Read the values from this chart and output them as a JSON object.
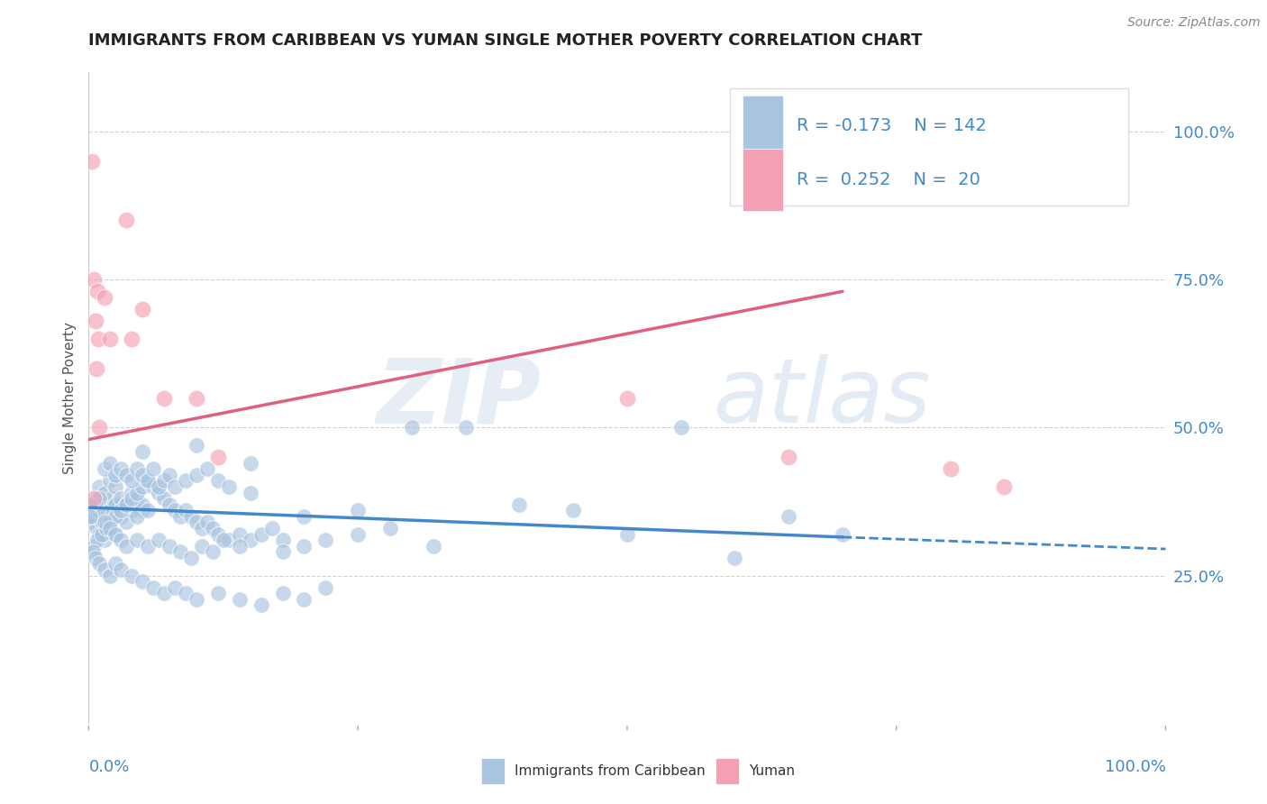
{
  "title": "IMMIGRANTS FROM CARIBBEAN VS YUMAN SINGLE MOTHER POVERTY CORRELATION CHART",
  "source": "Source: ZipAtlas.com",
  "ylabel": "Single Mother Poverty",
  "legend_labels": [
    "Immigrants from Caribbean",
    "Yuman"
  ],
  "blue_R": -0.173,
  "blue_N": 142,
  "pink_R": 0.252,
  "pink_N": 20,
  "blue_color": "#a8c4e0",
  "pink_color": "#f4a0b4",
  "blue_line_color": "#4488cc",
  "pink_line_color": "#e06080",
  "watermark_zip": "ZIP",
  "watermark_atlas": "atlas",
  "background_color": "#ffffff",
  "grid_color": "#cccccc",
  "axis_label_color": "#4488cc",
  "title_color": "#222222",
  "blue_scatter": [
    [
      0.3,
      34
    ],
    [
      0.5,
      35
    ],
    [
      0.7,
      33
    ],
    [
      1.0,
      36
    ],
    [
      1.2,
      34
    ],
    [
      1.5,
      35
    ],
    [
      1.8,
      37
    ],
    [
      2.0,
      36
    ],
    [
      2.2,
      38
    ],
    [
      2.5,
      37
    ],
    [
      0.8,
      38
    ],
    [
      1.0,
      40
    ],
    [
      1.5,
      39
    ],
    [
      2.0,
      41
    ],
    [
      2.5,
      40
    ],
    [
      3.0,
      38
    ],
    [
      3.5,
      37
    ],
    [
      4.0,
      39
    ],
    [
      4.5,
      38
    ],
    [
      5.0,
      36
    ],
    [
      1.0,
      32
    ],
    [
      1.5,
      31
    ],
    [
      2.0,
      33
    ],
    [
      2.5,
      32
    ],
    [
      3.0,
      35
    ],
    [
      3.5,
      34
    ],
    [
      4.0,
      36
    ],
    [
      4.5,
      35
    ],
    [
      5.0,
      37
    ],
    [
      5.5,
      36
    ],
    [
      0.5,
      30
    ],
    [
      0.8,
      31
    ],
    [
      1.2,
      32
    ],
    [
      1.6,
      33
    ],
    [
      2.0,
      34
    ],
    [
      2.5,
      35
    ],
    [
      3.0,
      36
    ],
    [
      3.5,
      37
    ],
    [
      4.0,
      38
    ],
    [
      4.5,
      39
    ],
    [
      5.0,
      40
    ],
    [
      5.5,
      41
    ],
    [
      6.0,
      40
    ],
    [
      6.5,
      39
    ],
    [
      7.0,
      38
    ],
    [
      7.5,
      37
    ],
    [
      8.0,
      36
    ],
    [
      8.5,
      35
    ],
    [
      9.0,
      36
    ],
    [
      9.5,
      35
    ],
    [
      10.0,
      34
    ],
    [
      10.5,
      33
    ],
    [
      11.0,
      34
    ],
    [
      11.5,
      33
    ],
    [
      12.0,
      32
    ],
    [
      13.0,
      31
    ],
    [
      14.0,
      32
    ],
    [
      15.0,
      31
    ],
    [
      16.0,
      32
    ],
    [
      17.0,
      33
    ],
    [
      1.5,
      43
    ],
    [
      2.0,
      44
    ],
    [
      2.5,
      42
    ],
    [
      3.0,
      43
    ],
    [
      3.5,
      42
    ],
    [
      4.0,
      41
    ],
    [
      4.5,
      43
    ],
    [
      5.0,
      42
    ],
    [
      5.5,
      41
    ],
    [
      6.0,
      43
    ],
    [
      6.5,
      40
    ],
    [
      7.0,
      41
    ],
    [
      7.5,
      42
    ],
    [
      8.0,
      40
    ],
    [
      9.0,
      41
    ],
    [
      10.0,
      42
    ],
    [
      11.0,
      43
    ],
    [
      12.0,
      41
    ],
    [
      13.0,
      40
    ],
    [
      15.0,
      39
    ],
    [
      0.4,
      29
    ],
    [
      0.6,
      28
    ],
    [
      1.0,
      27
    ],
    [
      1.5,
      26
    ],
    [
      2.0,
      25
    ],
    [
      2.5,
      27
    ],
    [
      3.0,
      26
    ],
    [
      4.0,
      25
    ],
    [
      5.0,
      24
    ],
    [
      6.0,
      23
    ],
    [
      7.0,
      22
    ],
    [
      8.0,
      23
    ],
    [
      9.0,
      22
    ],
    [
      10.0,
      21
    ],
    [
      12.0,
      22
    ],
    [
      14.0,
      21
    ],
    [
      16.0,
      20
    ],
    [
      18.0,
      22
    ],
    [
      20.0,
      21
    ],
    [
      22.0,
      23
    ],
    [
      0.2,
      36
    ],
    [
      0.4,
      35
    ],
    [
      0.6,
      37
    ],
    [
      0.8,
      36
    ],
    [
      1.0,
      38
    ],
    [
      1.5,
      34
    ],
    [
      2.0,
      33
    ],
    [
      2.5,
      32
    ],
    [
      3.0,
      31
    ],
    [
      3.5,
      30
    ],
    [
      4.5,
      31
    ],
    [
      5.5,
      30
    ],
    [
      6.5,
      31
    ],
    [
      7.5,
      30
    ],
    [
      8.5,
      29
    ],
    [
      9.5,
      28
    ],
    [
      10.5,
      30
    ],
    [
      11.5,
      29
    ],
    [
      12.5,
      31
    ],
    [
      14.0,
      30
    ],
    [
      18.0,
      31
    ],
    [
      20.0,
      30
    ],
    [
      25.0,
      32
    ],
    [
      30.0,
      50
    ],
    [
      35.0,
      50
    ],
    [
      40.0,
      37
    ],
    [
      45.0,
      36
    ],
    [
      50.0,
      32
    ],
    [
      55.0,
      50
    ],
    [
      60.0,
      28
    ],
    [
      65.0,
      35
    ],
    [
      70.0,
      32
    ],
    [
      5.0,
      46
    ],
    [
      10.0,
      47
    ],
    [
      15.0,
      44
    ],
    [
      20.0,
      35
    ],
    [
      25.0,
      36
    ],
    [
      0.1,
      37
    ],
    [
      0.15,
      35
    ],
    [
      18.0,
      29
    ],
    [
      22.0,
      31
    ],
    [
      28.0,
      33
    ],
    [
      32.0,
      30
    ]
  ],
  "pink_scatter": [
    [
      0.3,
      95
    ],
    [
      0.5,
      75
    ],
    [
      0.8,
      73
    ],
    [
      0.6,
      68
    ],
    [
      0.9,
      65
    ],
    [
      0.7,
      60
    ],
    [
      1.5,
      72
    ],
    [
      3.5,
      85
    ],
    [
      4.0,
      65
    ],
    [
      0.5,
      38
    ],
    [
      1.0,
      50
    ],
    [
      2.0,
      65
    ],
    [
      5.0,
      70
    ],
    [
      7.0,
      55
    ],
    [
      10.0,
      55
    ],
    [
      12.0,
      45
    ],
    [
      50.0,
      55
    ],
    [
      65.0,
      45
    ],
    [
      80.0,
      43
    ],
    [
      85.0,
      40
    ]
  ],
  "xlim": [
    0,
    100
  ],
  "ylim": [
    0,
    110
  ],
  "ytick_positions": [
    25,
    50,
    75,
    100
  ],
  "ytick_labels": [
    "25.0%",
    "50.0%",
    "75.0%",
    "100.0%"
  ],
  "blue_line": {
    "x0": 0,
    "y0": 36.5,
    "x1": 70,
    "y1": 31.5,
    "x_dash_end": 100,
    "y_dash_end": 29.5
  },
  "pink_line": {
    "x0": 0,
    "y0": 48.0,
    "x1": 70,
    "y1": 73.0
  }
}
